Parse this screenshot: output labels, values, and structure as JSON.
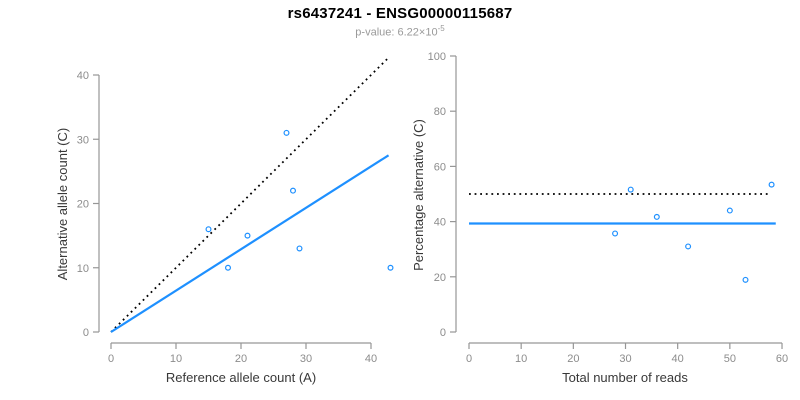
{
  "header": {
    "title": "rs6437241 - ENSG00000115687",
    "p_value_prefix": "p-value: 6.22×10",
    "p_value_exponent": "-5"
  },
  "colors": {
    "accent_blue": "#1E90FF",
    "line_black": "#000000",
    "axis_gray": "#969696",
    "tick_label_gray": "#8c8c8c",
    "axis_title_color": "#383838"
  },
  "chart_data": [
    {
      "type": "scatter",
      "xlabel": "Reference allele count (A)",
      "ylabel": "Alternative allele count (C)",
      "xlim": [
        0,
        43
      ],
      "ylim": [
        0,
        43
      ],
      "x_ticks": [
        0,
        10,
        20,
        30,
        40
      ],
      "y_ticks": [
        0,
        10,
        20,
        30,
        40
      ],
      "grid": false,
      "marker": "open-circle",
      "points": [
        [
          15,
          16
        ],
        [
          18,
          10
        ],
        [
          21,
          15
        ],
        [
          27,
          31
        ],
        [
          28,
          22
        ],
        [
          29,
          13
        ],
        [
          43,
          10
        ]
      ],
      "lines": [
        {
          "name": "identity-line",
          "style": "dotted",
          "color": "#000000",
          "x1": 0,
          "y1": 0,
          "x2": 42.6,
          "y2": 42.6
        },
        {
          "name": "regression-line",
          "style": "solid",
          "color": "#1E90FF",
          "x1": 0,
          "y1": 0,
          "x2": 42.7,
          "y2": 27.5
        }
      ]
    },
    {
      "type": "scatter",
      "xlabel": "Total number of reads",
      "ylabel": "Percentage alternative (C)",
      "xlim": [
        0,
        60
      ],
      "ylim": [
        0,
        100
      ],
      "x_ticks": [
        0,
        10,
        20,
        30,
        40,
        50,
        60
      ],
      "y_ticks": [
        0,
        20,
        40,
        60,
        80,
        100
      ],
      "grid": false,
      "marker": "open-circle",
      "points": [
        [
          28,
          35.7
        ],
        [
          31,
          51.6
        ],
        [
          36,
          41.7
        ],
        [
          42,
          31.0
        ],
        [
          50,
          44.0
        ],
        [
          53,
          18.9
        ],
        [
          58,
          53.4
        ]
      ],
      "lines": [
        {
          "name": "expected-50pct-line",
          "style": "dotted",
          "color": "#000000",
          "x1": 0,
          "y1": 50,
          "x2": 57.3,
          "y2": 50
        },
        {
          "name": "mean-percentage-line",
          "style": "solid",
          "color": "#1E90FF",
          "x1": 0,
          "y1": 39.3,
          "x2": 58.8,
          "y2": 39.3
        }
      ]
    }
  ]
}
